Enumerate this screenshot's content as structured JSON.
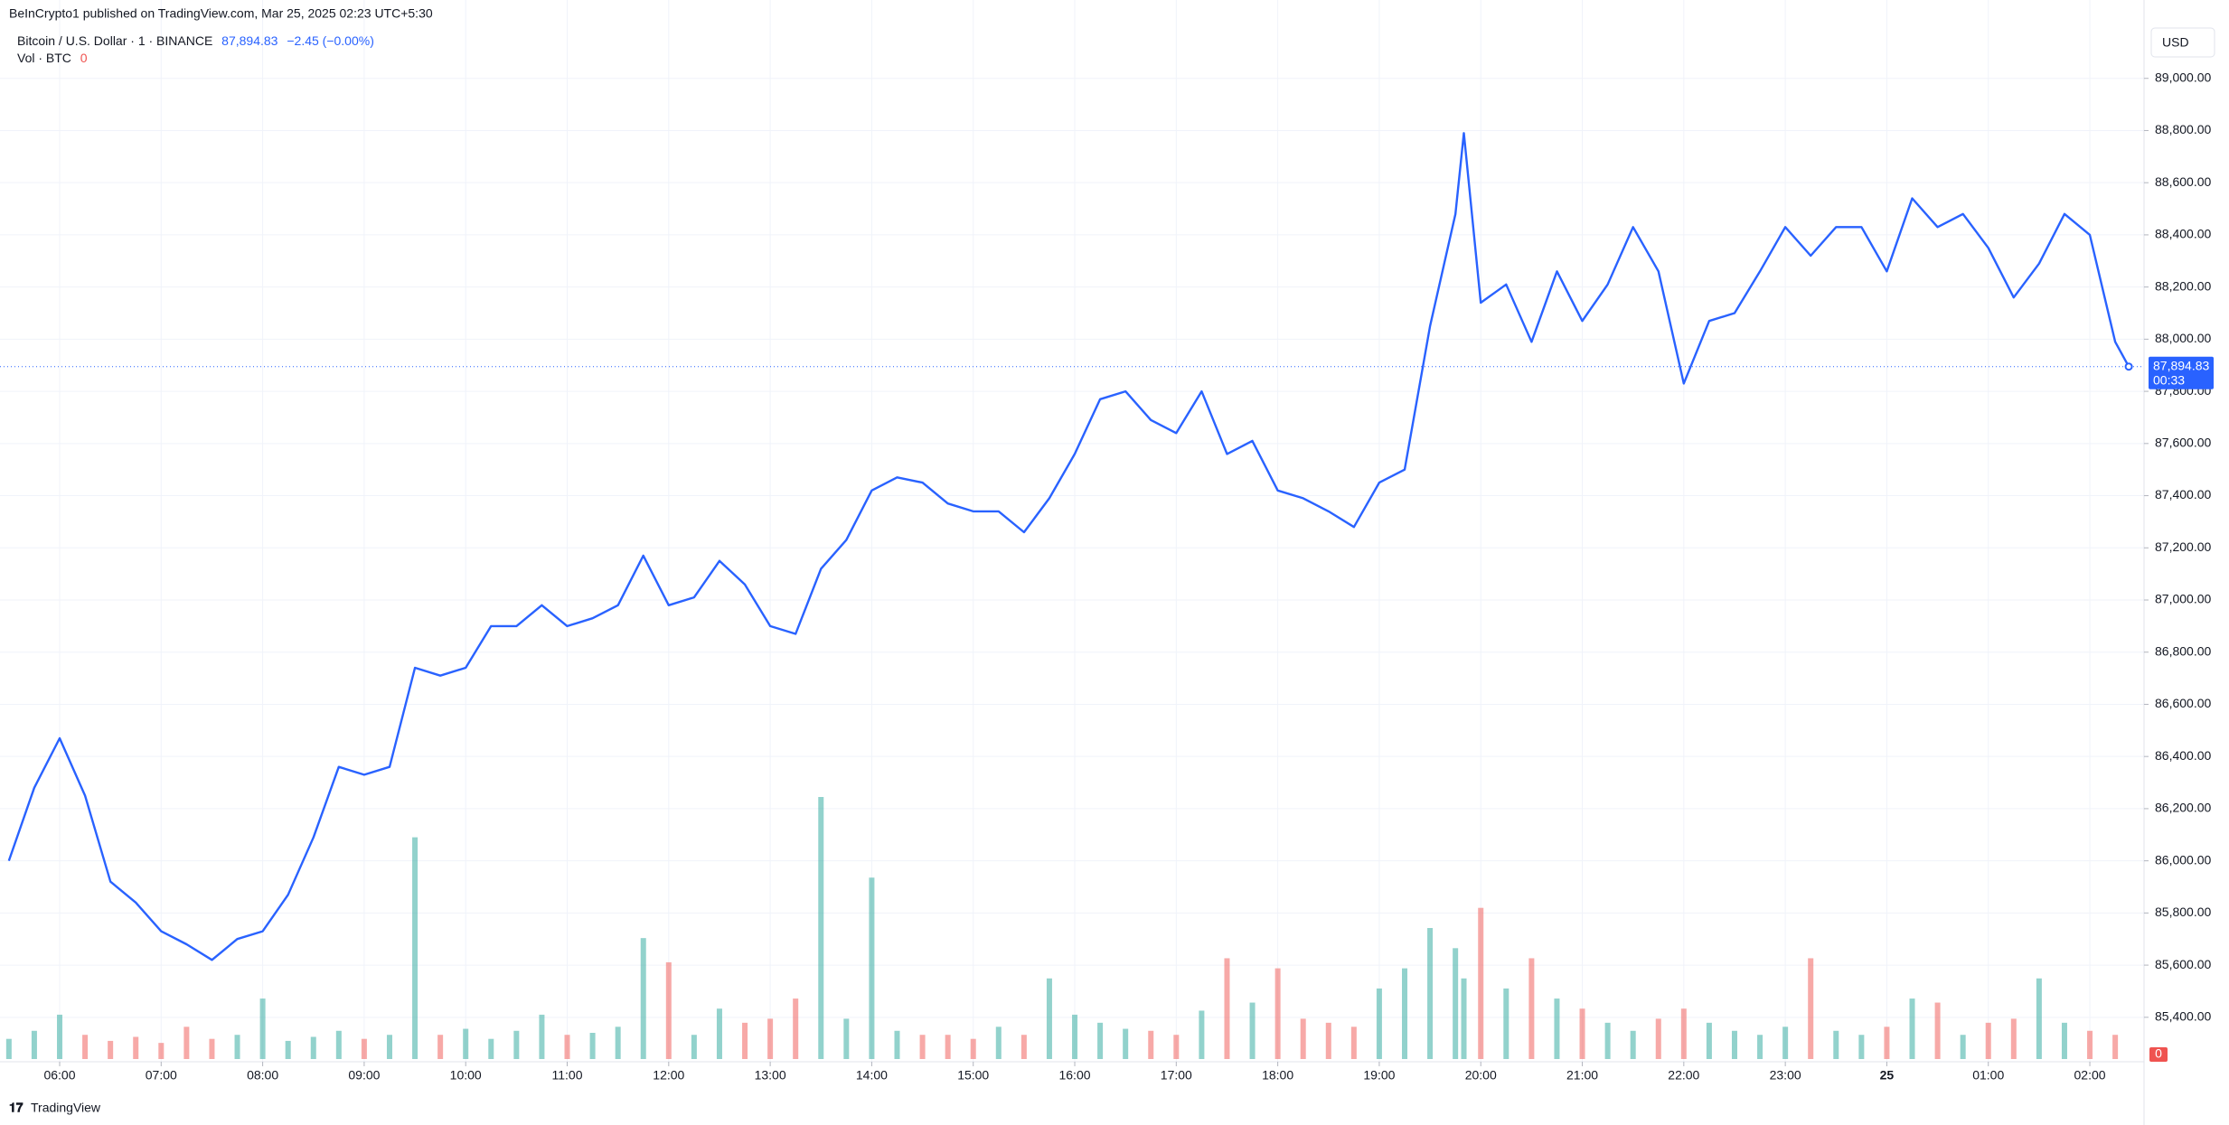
{
  "header": {
    "published": "BeInCrypto1 published on TradingView.com, Mar 25, 2025 02:23 UTC+5:30",
    "symbol": "Bitcoin / U.S. Dollar · 1 · BINANCE",
    "price": "87,894.83",
    "change": "−2.45 (−0.00%)",
    "volume_label": "Vol · BTC",
    "currency": "USD",
    "countdown": "00:33",
    "logo": "TradingView"
  },
  "chart_data": {
    "type": "line",
    "color": "#2962ff",
    "grid": true,
    "x": [
      "05:30",
      "05:45",
      "06:00",
      "06:15",
      "06:30",
      "06:45",
      "07:00",
      "07:15",
      "07:30",
      "07:45",
      "08:00",
      "08:15",
      "08:30",
      "08:45",
      "09:00",
      "09:15",
      "09:30",
      "09:45",
      "10:00",
      "10:15",
      "10:30",
      "10:45",
      "11:00",
      "11:15",
      "11:30",
      "11:45",
      "12:00",
      "12:15",
      "12:30",
      "12:45",
      "13:00",
      "13:15",
      "13:30",
      "13:45",
      "14:00",
      "14:15",
      "14:30",
      "14:45",
      "15:00",
      "15:15",
      "15:30",
      "15:45",
      "16:00",
      "16:15",
      "16:30",
      "16:45",
      "17:00",
      "17:15",
      "17:30",
      "17:45",
      "18:00",
      "18:15",
      "18:30",
      "18:45",
      "19:00",
      "19:15",
      "19:30",
      "19:45",
      "19:50",
      "20:00",
      "20:15",
      "20:30",
      "20:45",
      "21:00",
      "21:15",
      "21:30",
      "21:45",
      "22:00",
      "22:15",
      "22:30",
      "22:45",
      "23:00",
      "23:15",
      "23:30",
      "23:45",
      "00:00",
      "00:15",
      "00:30",
      "00:45",
      "01:00",
      "01:15",
      "01:30",
      "01:45",
      "02:00",
      "02:15",
      "02:23"
    ],
    "values": [
      86000,
      86280,
      86470,
      86250,
      85920,
      85840,
      85730,
      85680,
      85620,
      85700,
      85730,
      85870,
      86090,
      86360,
      86330,
      86360,
      86740,
      86710,
      86740,
      86900,
      86900,
      86980,
      86900,
      86930,
      86980,
      87170,
      86980,
      87010,
      87150,
      87060,
      86900,
      86870,
      87120,
      87230,
      87420,
      87470,
      87450,
      87370,
      87340,
      87340,
      87260,
      87390,
      87560,
      87770,
      87800,
      87690,
      87640,
      87800,
      87560,
      87610,
      87420,
      87390,
      87340,
      87280,
      87450,
      87500,
      88050,
      88480,
      88790,
      88140,
      88210,
      87990,
      88260,
      88070,
      88210,
      88430,
      88260,
      87830,
      88070,
      88100,
      88260,
      88430,
      88320,
      88430,
      88430,
      88260,
      88540,
      88430,
      88480,
      88350,
      88160,
      88290,
      88480,
      88400,
      87990,
      87894.83
    ],
    "volume": {
      "up_color": "rgba(38,166,154,0.5)",
      "down_color": "rgba(239,83,80,0.5)",
      "values": [
        10,
        14,
        22,
        12,
        9,
        11,
        8,
        16,
        10,
        12,
        30,
        9,
        11,
        14,
        10,
        12,
        110,
        12,
        15,
        10,
        14,
        22,
        12,
        13,
        16,
        60,
        48,
        12,
        25,
        18,
        20,
        30,
        130,
        20,
        90,
        14,
        12,
        12,
        10,
        16,
        12,
        40,
        22,
        18,
        15,
        14,
        12,
        24,
        50,
        28,
        45,
        20,
        18,
        16,
        35,
        45,
        65,
        55,
        40,
        75,
        35,
        50,
        30,
        25,
        18,
        14,
        20,
        25,
        18,
        14,
        12,
        16,
        50,
        14,
        12,
        16,
        30,
        28,
        12,
        18,
        20,
        40,
        18,
        14,
        12,
        0
      ]
    },
    "ylim": [
      85240,
      89200
    ],
    "yticks": [
      {
        "value": 85400,
        "label": "85,400.00"
      },
      {
        "value": 85600,
        "label": "85,600.00"
      },
      {
        "value": 85800,
        "label": "85,800.00"
      },
      {
        "value": 86000,
        "label": "86,000.00"
      },
      {
        "value": 86200,
        "label": "86,200.00"
      },
      {
        "value": 86400,
        "label": "86,400.00"
      },
      {
        "value": 86600,
        "label": "86,600.00"
      },
      {
        "value": 86800,
        "label": "86,800.00"
      },
      {
        "value": 87000,
        "label": "87,000.00"
      },
      {
        "value": 87200,
        "label": "87,200.00"
      },
      {
        "value": 87400,
        "label": "87,400.00"
      },
      {
        "value": 87600,
        "label": "87,600.00"
      },
      {
        "value": 87800,
        "label": "87,800.00"
      },
      {
        "value": 88000,
        "label": "88,000.00"
      },
      {
        "value": 88200,
        "label": "88,200.00"
      },
      {
        "value": 88400,
        "label": "88,400.00"
      },
      {
        "value": 88600,
        "label": "88,600.00"
      },
      {
        "value": 88800,
        "label": "88,800.00"
      },
      {
        "value": 89000,
        "label": "89,000.00"
      }
    ],
    "xticks": [
      "06:00",
      "07:00",
      "08:00",
      "09:00",
      "10:00",
      "11:00",
      "12:00",
      "13:00",
      "14:00",
      "15:00",
      "16:00",
      "17:00",
      "18:00",
      "19:00",
      "20:00",
      "21:00",
      "22:00",
      "23:00",
      {
        "value": "00:00",
        "label": "25"
      },
      "01:00",
      "02:00"
    ]
  }
}
